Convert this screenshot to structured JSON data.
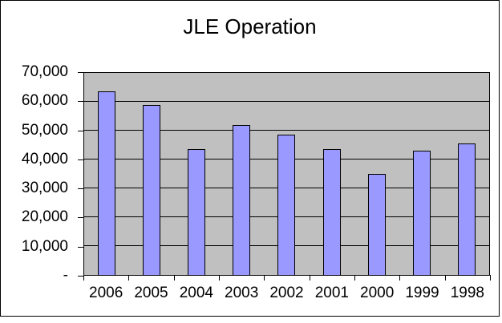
{
  "chart_data": {
    "type": "bar",
    "title": "JLE Operation",
    "categories": [
      "2006",
      "2005",
      "2004",
      "2003",
      "2002",
      "2001",
      "2000",
      "1999",
      "1998"
    ],
    "values": [
      63500,
      59000,
      43500,
      52000,
      48500,
      43500,
      35000,
      43000,
      45500
    ],
    "xlabel": "",
    "ylabel": "",
    "ylim": [
      0,
      70000
    ],
    "ytick_step": 10000,
    "ytick_labels_top_to_bottom": [
      "70,000",
      "60,000",
      "50,000",
      "40,000",
      "30,000",
      "20,000",
      "10,000",
      "-"
    ],
    "grid": true,
    "legend": "none",
    "colors": {
      "bar_fill": "#9999FF",
      "bar_border": "#000000",
      "plot_bg": "#C0C0C0",
      "gridline": "#000000",
      "chart_bg": "#FFFFFF",
      "text": "#000000"
    }
  }
}
